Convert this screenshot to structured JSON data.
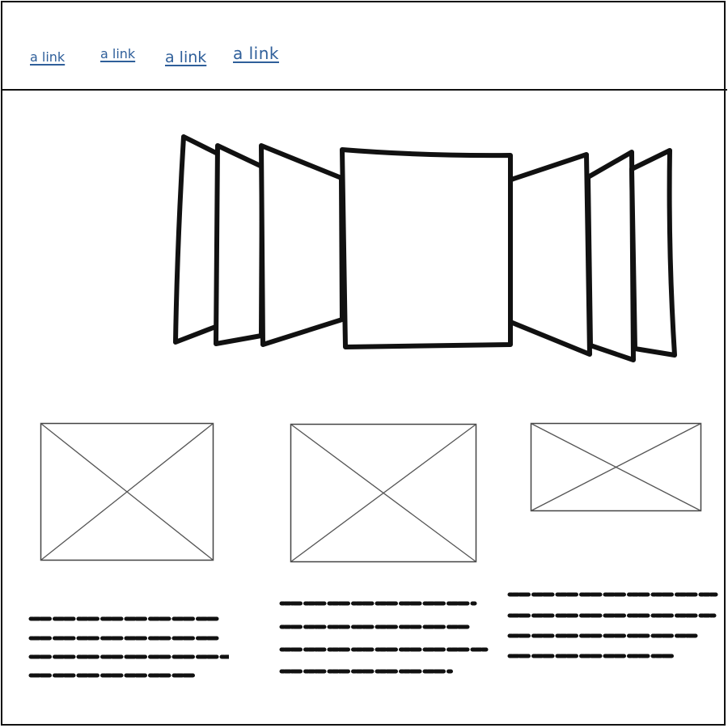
{
  "nav": {
    "links": [
      {
        "label": "a link"
      },
      {
        "label": "a link"
      },
      {
        "label": "a link"
      },
      {
        "label": "a link"
      }
    ]
  },
  "colors": {
    "link": "#2f5f9a",
    "stroke": "#111111",
    "placeholder_stroke": "#555555",
    "background": "#ffffff"
  },
  "coverflow": {
    "icon": "coverflow-carousel",
    "covers_left": 3,
    "covers_right": 3
  },
  "columns": [
    {
      "image_icon": "image-placeholder",
      "text_icon": "scribbled-text-lines",
      "text_lines": 4
    },
    {
      "image_icon": "image-placeholder",
      "text_icon": "scribbled-text-lines",
      "text_lines": 4
    },
    {
      "image_icon": "image-placeholder",
      "text_icon": "scribbled-text-lines",
      "text_lines": 4
    }
  ]
}
